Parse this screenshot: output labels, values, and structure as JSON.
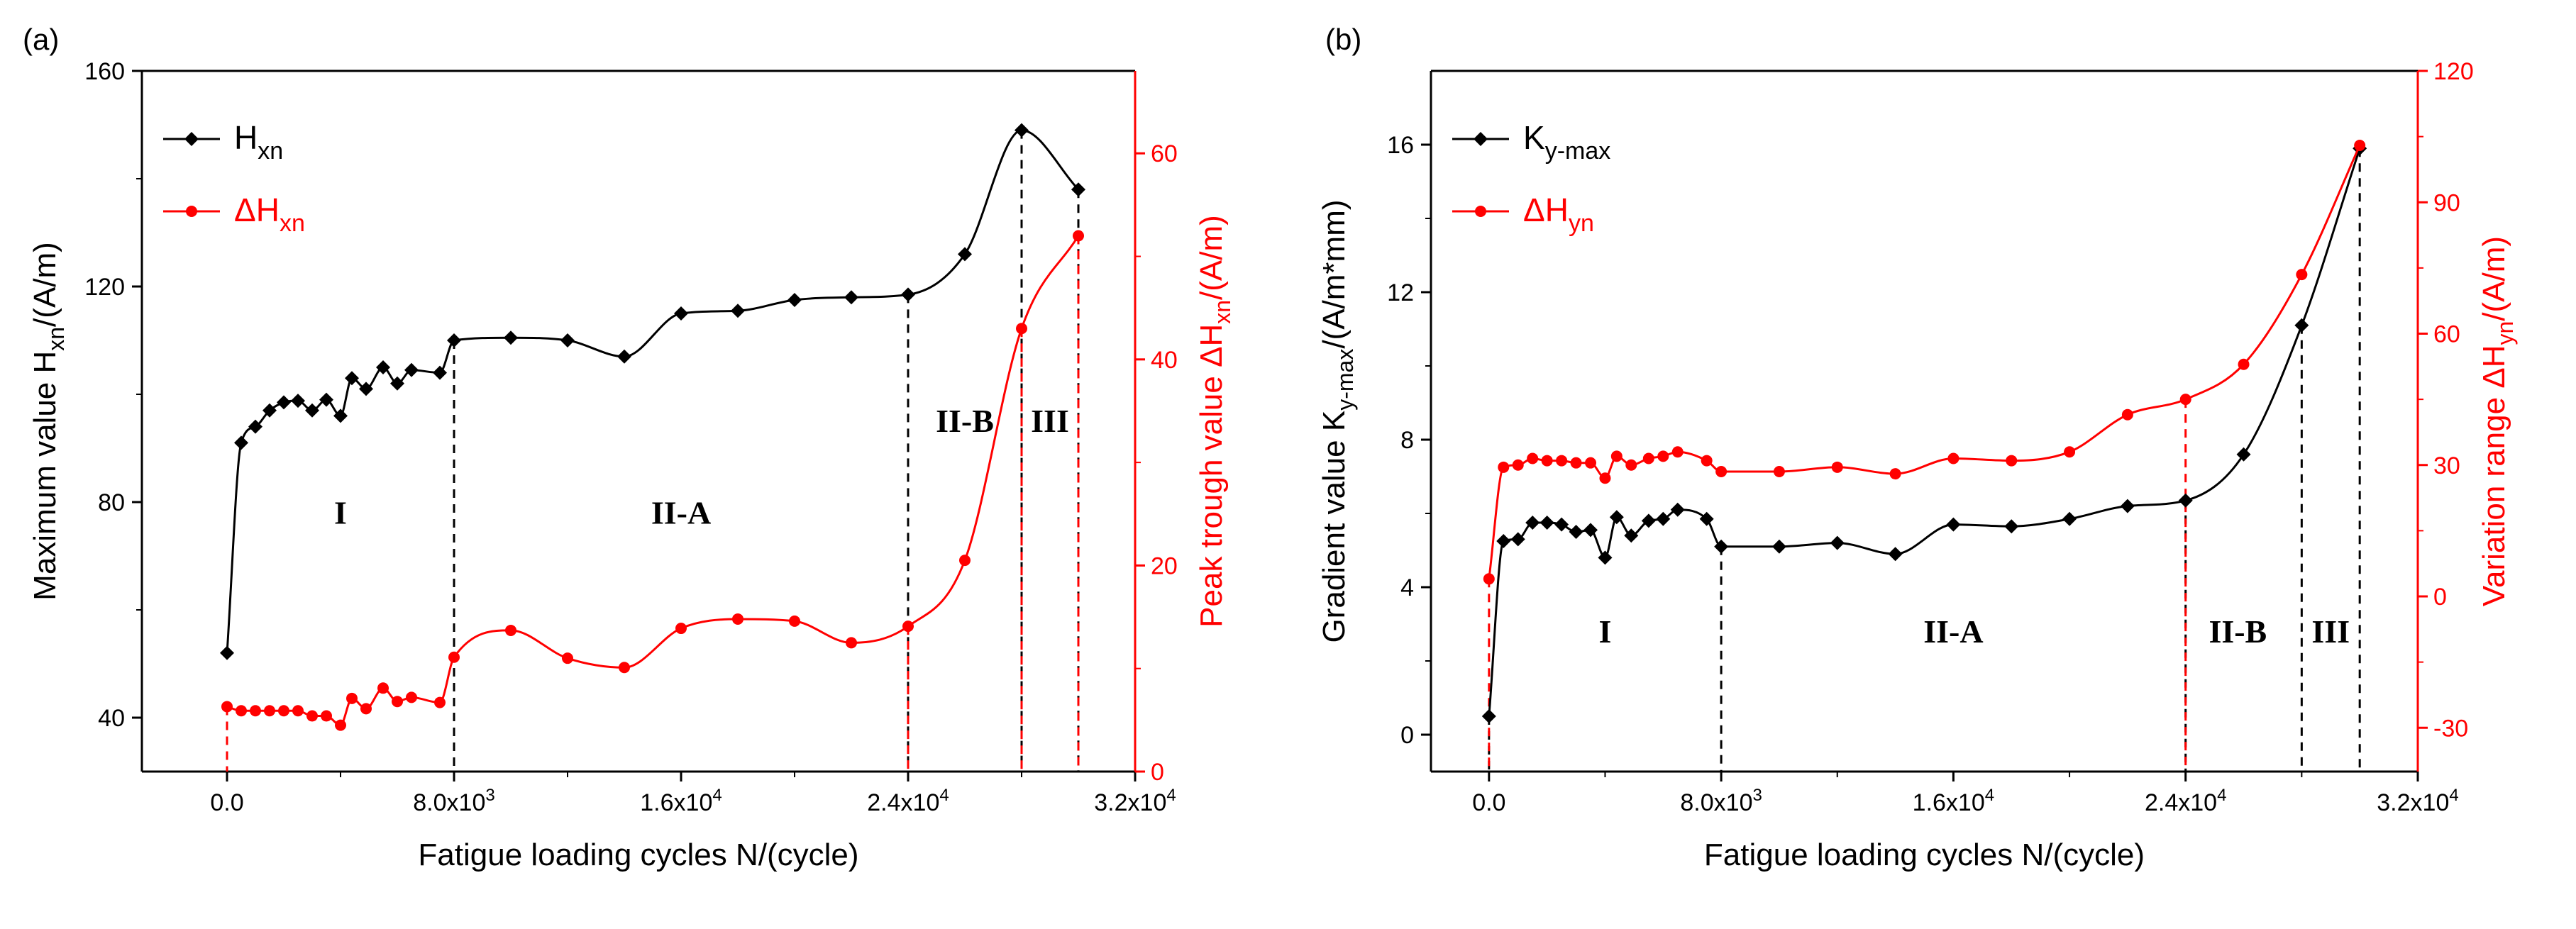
{
  "colors": {
    "black": "#000000",
    "red": "#ff0000",
    "background": "#ffffff"
  },
  "chart_data": [
    {
      "panel": "(a)",
      "type": "line",
      "xlabel": "Fatigue loading cycles N/(cycle)",
      "ylabel_left": {
        "base": "Maximum value H",
        "sub": "xn",
        "tail": "/(A/m)"
      },
      "ylabel_right": {
        "base": "Peak trough value ΔH",
        "sub": "xn",
        "tail": "/(A/m)"
      },
      "xlim": [
        -3000,
        32000
      ],
      "x_ticks": [
        {
          "value": 0,
          "label": "0.0"
        },
        {
          "value": 8000,
          "label": "8.0x10",
          "exp": "3"
        },
        {
          "value": 16000,
          "label": "1.6x10",
          "exp": "4"
        },
        {
          "value": 24000,
          "label": "2.4x10",
          "exp": "4"
        },
        {
          "value": 32000,
          "label": "3.2x10",
          "exp": "4"
        }
      ],
      "ylim_left": [
        30,
        160
      ],
      "y_ticks_left": [
        "40",
        "80",
        "120",
        "160"
      ],
      "ylim_right": [
        0,
        68
      ],
      "y_ticks_right": [
        "0",
        "20",
        "40",
        "60"
      ],
      "legend_position": "top-left",
      "series": [
        {
          "name": "H",
          "name_sub": "xn",
          "axis": "left",
          "color": "#000000",
          "marker": "diamond",
          "x": [
            0,
            500,
            1000,
            1500,
            2000,
            2500,
            3000,
            3500,
            4000,
            4400,
            4900,
            5500,
            6000,
            6500,
            7500,
            8000,
            10000,
            12000,
            14000,
            16000,
            18000,
            20000,
            22000,
            24000,
            26000,
            28000,
            30000
          ],
          "y": [
            52,
            91,
            94,
            97,
            98.5,
            98.8,
            97,
            99,
            96,
            103,
            101,
            105,
            102,
            104.5,
            104,
            110,
            110.5,
            110,
            107,
            115,
            115.5,
            117.5,
            118,
            118.5,
            126,
            149,
            138
          ]
        },
        {
          "name": "ΔH",
          "name_sub": "xn",
          "axis": "right",
          "color": "#ff0000",
          "marker": "circle",
          "x": [
            0,
            500,
            1000,
            1500,
            2000,
            2500,
            3000,
            3500,
            4000,
            4400,
            4900,
            5500,
            6000,
            6500,
            7500,
            8000,
            10000,
            12000,
            14000,
            16000,
            18000,
            20000,
            22000,
            24000,
            26000,
            28000,
            30000
          ],
          "y": [
            6.3,
            5.9,
            5.9,
            5.9,
            5.9,
            5.9,
            5.4,
            5.4,
            4.5,
            7.1,
            6.1,
            8.1,
            6.8,
            7.2,
            6.7,
            11.1,
            13.7,
            11.0,
            10.1,
            13.9,
            14.8,
            14.6,
            12.5,
            14.1,
            20.5,
            43.0,
            52.0
          ]
        }
      ],
      "vertical_markers": [
        {
          "x": 8000,
          "color": "#000000",
          "to_series": "H"
        },
        {
          "x": 24000,
          "color": "#000000",
          "to_series": "H"
        },
        {
          "x": 24000,
          "color": "#ff0000",
          "to_series": "ΔH"
        },
        {
          "x": 28000,
          "color": "#000000",
          "to_series": "H"
        },
        {
          "x": 28000,
          "color": "#ff0000",
          "to_series": "ΔH"
        },
        {
          "x": 30000,
          "color": "#000000",
          "to_series": "H"
        },
        {
          "x": 30000,
          "color": "#ff0000",
          "to_series": "ΔH"
        },
        {
          "x": 0,
          "color": "#ff0000",
          "to_series": "ΔH"
        }
      ],
      "region_labels": [
        {
          "text": "I",
          "x": 4000,
          "y": 76
        },
        {
          "text": "II-A",
          "x": 16000,
          "y": 76
        },
        {
          "text": "II-B",
          "x": 26000,
          "y": 93
        },
        {
          "text": "III",
          "x": 29000,
          "y": 93
        }
      ]
    },
    {
      "panel": "(b)",
      "type": "line",
      "xlabel": "Fatigue loading cycles N/(cycle)",
      "ylabel_left": {
        "base": "Gradient value K",
        "sub": "y-max",
        "tail": "/(A/m*mm)"
      },
      "ylabel_right": {
        "base": "Variation range ΔH",
        "sub": "yn",
        "tail": "/(A/m)"
      },
      "xlim": [
        -2000,
        32000
      ],
      "x_ticks": [
        {
          "value": 0,
          "label": "0.0"
        },
        {
          "value": 8000,
          "label": "8.0x10",
          "exp": "3"
        },
        {
          "value": 16000,
          "label": "1.6x10",
          "exp": "4"
        },
        {
          "value": 24000,
          "label": "2.4x10",
          "exp": "4"
        },
        {
          "value": 32000,
          "label": "3.2x10",
          "exp": "4"
        }
      ],
      "ylim_left": [
        -1,
        18
      ],
      "y_ticks_left": [
        "0",
        "4",
        "8",
        "12",
        "16"
      ],
      "ylim_right": [
        -40,
        120
      ],
      "y_ticks_right": [
        "-30",
        "0",
        "30",
        "60",
        "90",
        "120"
      ],
      "legend_position": "top-left",
      "series": [
        {
          "name": "K",
          "name_sub": "y-max",
          "axis": "left",
          "color": "#000000",
          "marker": "diamond",
          "x": [
            0,
            500,
            1000,
            1500,
            2000,
            2500,
            3000,
            3500,
            4000,
            4400,
            4900,
            5500,
            6000,
            6500,
            7500,
            8000,
            10000,
            12000,
            14000,
            16000,
            18000,
            20000,
            22000,
            24000,
            26000,
            28000,
            30000
          ],
          "y": [
            0.5,
            5.25,
            5.3,
            5.75,
            5.75,
            5.7,
            5.5,
            5.55,
            4.8,
            5.9,
            5.4,
            5.8,
            5.85,
            6.1,
            5.85,
            5.1,
            5.1,
            5.2,
            4.9,
            5.7,
            5.65,
            5.85,
            6.2,
            6.35,
            7.6,
            11.1,
            15.9
          ]
        },
        {
          "name": "ΔH",
          "name_sub": "yn",
          "axis": "right",
          "color": "#ff0000",
          "marker": "circle",
          "x": [
            0,
            500,
            1000,
            1500,
            2000,
            2500,
            3000,
            3500,
            4000,
            4400,
            4900,
            5500,
            6000,
            6500,
            7500,
            8000,
            10000,
            12000,
            14000,
            16000,
            18000,
            20000,
            22000,
            24000,
            26000,
            28000,
            30000
          ],
          "y": [
            4,
            29.5,
            30,
            31.5,
            31,
            31,
            30.5,
            30.5,
            27,
            32,
            30,
            31.5,
            32,
            33,
            31,
            28.5,
            28.5,
            29.5,
            28,
            31.5,
            31,
            33,
            41.5,
            45,
            53,
            73.5,
            103
          ]
        }
      ],
      "vertical_markers": [
        {
          "x": 0,
          "color": "#000000",
          "to_series": "K"
        },
        {
          "x": 0,
          "color": "#ff0000",
          "to_series": "ΔH"
        },
        {
          "x": 8000,
          "color": "#000000",
          "to_series": "K"
        },
        {
          "x": 24000,
          "color": "#000000",
          "to_series": "K"
        },
        {
          "x": 24000,
          "color": "#ff0000",
          "to_series": "ΔH"
        },
        {
          "x": 28000,
          "color": "#000000",
          "to_series": "K"
        },
        {
          "x": 30000,
          "color": "#000000",
          "to_series": "K"
        }
      ],
      "region_labels": [
        {
          "text": "I",
          "x": 4000,
          "y": 2.5
        },
        {
          "text": "II-A",
          "x": 16000,
          "y": 2.5
        },
        {
          "text": "II-B",
          "x": 25800,
          "y": 2.5
        },
        {
          "text": "III",
          "x": 29000,
          "y": 2.5
        }
      ]
    }
  ]
}
